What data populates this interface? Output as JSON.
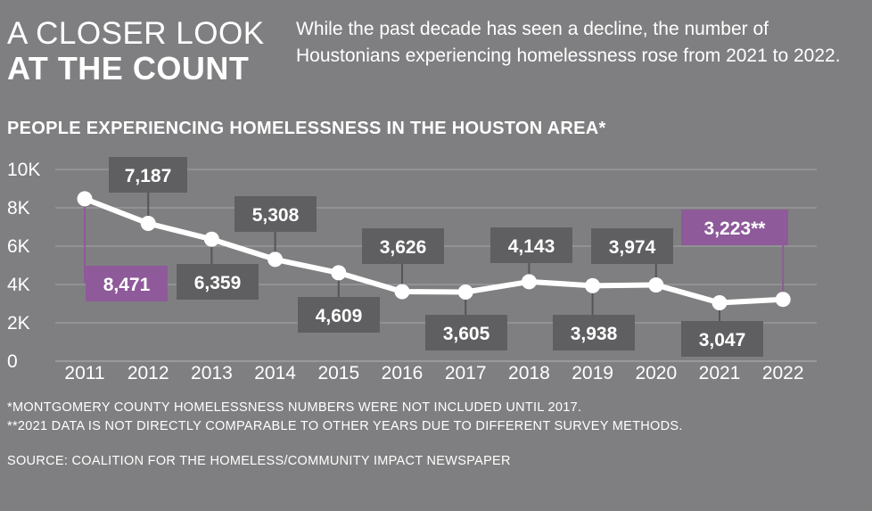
{
  "header": {
    "title_line1": "A CLOSER LOOK",
    "title_line2": "AT THE COUNT",
    "intro": "While the past decade has seen a decline, the number of Houstonians experiencing homelessness rose from 2021 to 2022."
  },
  "chart_data": {
    "type": "line",
    "title": "PEOPLE EXPERIENCING HOMELESSNESS IN THE HOUSTON AREA*",
    "x": [
      "2011",
      "2012",
      "2013",
      "2014",
      "2015",
      "2016",
      "2017",
      "2018",
      "2019",
      "2020",
      "2021",
      "2022"
    ],
    "values": [
      8471,
      7187,
      6359,
      5308,
      4609,
      3626,
      3605,
      4143,
      3938,
      3974,
      3047,
      3223
    ],
    "data_labels": [
      "8,471",
      "7,187",
      "6,359",
      "5,308",
      "4,609",
      "3,626",
      "3,605",
      "4,143",
      "3,938",
      "3,974",
      "3,047",
      "3,223**"
    ],
    "y_ticks": [
      0,
      2000,
      4000,
      6000,
      8000,
      10000
    ],
    "y_tick_labels": [
      "0",
      "2K",
      "4K",
      "6K",
      "8K",
      "10K"
    ],
    "ylim": [
      0,
      10000
    ],
    "grid": true,
    "colors": {
      "background": "#7f7f81",
      "line": "#ffffff",
      "label_box": "#5f5f61",
      "highlight_box": "#8e5a9a",
      "gridline": "#a4a4a6"
    },
    "highlighted": [
      "2011",
      "2022"
    ]
  },
  "footnotes": {
    "note1": "*MONTGOMERY COUNTY HOMELESSNESS NUMBERS WERE NOT INCLUDED UNTIL 2017.",
    "note2": "**2021 DATA IS NOT DIRECTLY COMPARABLE TO OTHER YEARS DUE TO DIFFERENT SURVEY METHODS.",
    "source": "SOURCE: COALITION FOR THE HOMELESS/COMMUNITY IMPACT NEWSPAPER"
  }
}
